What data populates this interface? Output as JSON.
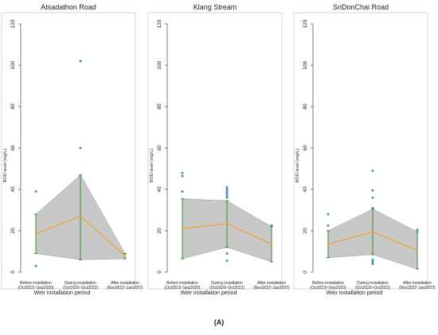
{
  "figure": {
    "panel_label": "(A)",
    "xlabel": "Weir installation period",
    "ylabel": "BOD level (mg/L)",
    "colors": {
      "mean_line": "#f0a030",
      "range_line": "#2e8b2e",
      "band": "#c8c8c8",
      "points": "#4a8fb5",
      "axis": "#444444",
      "panel_bg": "#ffffff",
      "frame": "#bbbbbb"
    }
  },
  "chart_data": [
    {
      "type": "line",
      "title": "Atsadathon Road",
      "xlabel": "Weir installation period",
      "ylabel": "BOD level (mg/L)",
      "ylim": [
        0,
        120
      ],
      "yticks": [
        0,
        20,
        40,
        60,
        80,
        100,
        120
      ],
      "categories": [
        "Before installation",
        "During installation",
        "After installation"
      ],
      "category_sublabels": [
        "(Oct2019~Sep2020)",
        "(Oct2020~Oct2022)",
        "(Nov2022~Jan2023)"
      ],
      "series": [
        {
          "role": "mean",
          "values": [
            18.5,
            27,
            8
          ]
        },
        {
          "role": "band_upper",
          "values": [
            28,
            47,
            9
          ]
        },
        {
          "role": "band_lower",
          "values": [
            9,
            6,
            6.5
          ]
        },
        {
          "role": "range_max",
          "values": [
            28,
            47,
            9
          ]
        },
        {
          "role": "range_min",
          "values": [
            9,
            6,
            6.5
          ]
        }
      ],
      "outliers": [
        {
          "category": 0,
          "values": [
            39,
            3
          ]
        },
        {
          "category": 1,
          "values": [
            102,
            60
          ]
        },
        {
          "category": 2,
          "values": []
        }
      ]
    },
    {
      "type": "line",
      "title": "Klang Stream",
      "xlabel": "Weir installation period",
      "ylabel": "BOD level (mg/L)",
      "ylim": [
        0,
        120
      ],
      "yticks": [
        0,
        20,
        40,
        60,
        80,
        100,
        120
      ],
      "categories": [
        "Before installation",
        "During installation",
        "After installation"
      ],
      "category_sublabels": [
        "(Oct2019~Sep2020)",
        "(Oct2020~Oct2022)",
        "(Nov2022~Jan2023)"
      ],
      "series": [
        {
          "role": "mean",
          "values": [
            21,
            23.5,
            13.5
          ]
        },
        {
          "role": "band_upper",
          "values": [
            35.5,
            34.5,
            22
          ]
        },
        {
          "role": "band_lower",
          "values": [
            6.5,
            12,
            5
          ]
        },
        {
          "role": "range_max",
          "values": [
            35.5,
            34.5,
            22
          ]
        },
        {
          "role": "range_min",
          "values": [
            6.5,
            12,
            5
          ]
        }
      ],
      "outliers": [
        {
          "category": 0,
          "values": [
            48,
            46.5,
            39
          ]
        },
        {
          "category": 1,
          "values": [
            41,
            40,
            39,
            38,
            37,
            36,
            9,
            5.5
          ]
        },
        {
          "category": 2,
          "values": [
            22.5
          ]
        }
      ]
    },
    {
      "type": "line",
      "title": "SriDonChai Road",
      "xlabel": "Weir installation period",
      "ylabel": "BOD level (mg/L)",
      "ylim": [
        0,
        120
      ],
      "yticks": [
        0,
        20,
        40,
        60,
        80,
        100,
        120
      ],
      "categories": [
        "Before installation",
        "During installation",
        "After installation"
      ],
      "category_sublabels": [
        "(Oct2019~Sep2020)",
        "(Oct2020~Oct2022)",
        "(Nov2022~Jan2023)"
      ],
      "series": [
        {
          "role": "mean",
          "values": [
            13.5,
            19.5,
            10.5
          ]
        },
        {
          "role": "band_upper",
          "values": [
            20,
            30.5,
            19.5
          ]
        },
        {
          "role": "band_lower",
          "values": [
            7,
            8.5,
            1.5
          ]
        },
        {
          "role": "range_max",
          "values": [
            20,
            30.5,
            19.5
          ]
        },
        {
          "role": "range_min",
          "values": [
            7,
            8.5,
            1.5
          ]
        }
      ],
      "outliers": [
        {
          "category": 0,
          "values": [
            28,
            22.5
          ]
        },
        {
          "category": 1,
          "values": [
            49,
            39.5,
            36,
            31,
            6,
            5,
            4
          ]
        },
        {
          "category": 2,
          "values": [
            20.5
          ]
        }
      ]
    }
  ]
}
